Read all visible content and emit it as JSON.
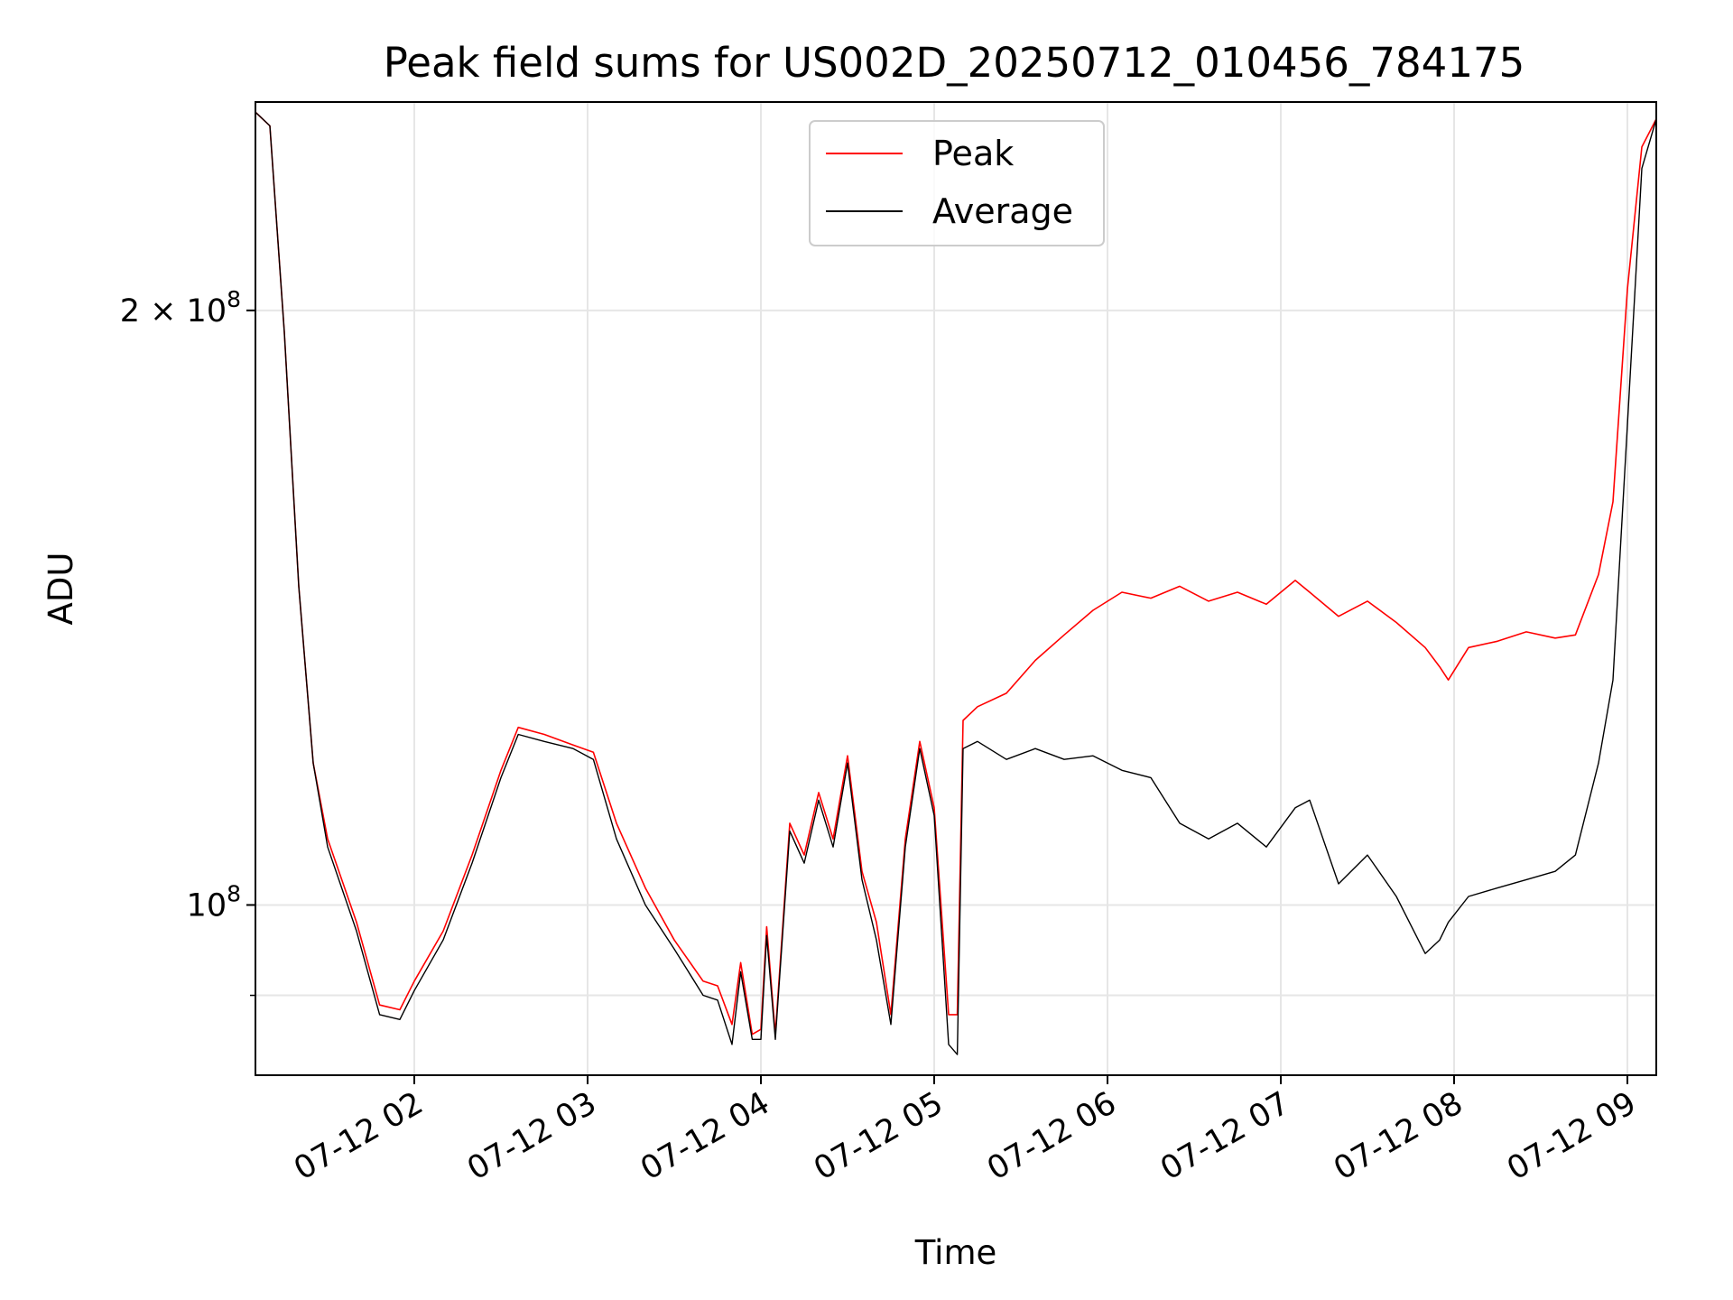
{
  "chart_data": {
    "type": "line",
    "title": "Peak field sums for US002D_20250712_010456_784175",
    "xlabel": "Time",
    "ylabel": "ADU",
    "x_axis_type": "datetime",
    "xlim": [
      "2025-07-12 01:05",
      "2025-07-12 09:10"
    ],
    "ylim": [
      82000000,
      255000000
    ],
    "y_scale": "log",
    "grid": true,
    "legend_position": "top-center",
    "x_ticks": [
      {
        "value": "2025-07-12 02:00",
        "label": "07-12 02"
      },
      {
        "value": "2025-07-12 03:00",
        "label": "07-12 03"
      },
      {
        "value": "2025-07-12 04:00",
        "label": "07-12 04"
      },
      {
        "value": "2025-07-12 05:00",
        "label": "07-12 05"
      },
      {
        "value": "2025-07-12 06:00",
        "label": "07-12 06"
      },
      {
        "value": "2025-07-12 07:00",
        "label": "07-12 07"
      },
      {
        "value": "2025-07-12 08:00",
        "label": "07-12 08"
      },
      {
        "value": "2025-07-12 09:00",
        "label": "07-12 09"
      }
    ],
    "y_ticks": [
      {
        "value": 100000000,
        "base": "10",
        "exp": "8",
        "label": "10^8"
      },
      {
        "value": 200000000,
        "mantissa": "2 × ",
        "base": "10",
        "exp": "8",
        "label": "2 × 10^8"
      }
    ],
    "y_minor_ticks": [
      90000000
    ],
    "series": [
      {
        "name": "Peak",
        "color": "#ff0000",
        "points": [
          [
            "2025-07-12 01:05",
            252000000
          ],
          [
            "2025-07-12 01:10",
            248000000
          ],
          [
            "2025-07-12 01:15",
            195000000
          ],
          [
            "2025-07-12 01:20",
            145000000
          ],
          [
            "2025-07-12 01:25",
            118000000
          ],
          [
            "2025-07-12 01:30",
            108000000
          ],
          [
            "2025-07-12 01:40",
            98000000
          ],
          [
            "2025-07-12 01:48",
            89000000
          ],
          [
            "2025-07-12 01:55",
            88500000
          ],
          [
            "2025-07-12 02:00",
            91500000
          ],
          [
            "2025-07-12 02:10",
            97000000
          ],
          [
            "2025-07-12 02:20",
            106000000
          ],
          [
            "2025-07-12 02:30",
            117000000
          ],
          [
            "2025-07-12 02:36",
            123000000
          ],
          [
            "2025-07-12 02:45",
            122000000
          ],
          [
            "2025-07-12 02:55",
            120500000
          ],
          [
            "2025-07-12 03:02",
            119500000
          ],
          [
            "2025-07-12 03:10",
            110000000
          ],
          [
            "2025-07-12 03:20",
            102000000
          ],
          [
            "2025-07-12 03:30",
            96000000
          ],
          [
            "2025-07-12 03:40",
            91500000
          ],
          [
            "2025-07-12 03:45",
            91000000
          ],
          [
            "2025-07-12 03:50",
            87000000
          ],
          [
            "2025-07-12 03:53",
            93500000
          ],
          [
            "2025-07-12 03:57",
            86000000
          ],
          [
            "2025-07-12 04:00",
            86500000
          ],
          [
            "2025-07-12 04:02",
            97500000
          ],
          [
            "2025-07-12 04:05",
            86000000
          ],
          [
            "2025-07-12 04:10",
            110000000
          ],
          [
            "2025-07-12 04:15",
            106000000
          ],
          [
            "2025-07-12 04:20",
            114000000
          ],
          [
            "2025-07-12 04:25",
            108000000
          ],
          [
            "2025-07-12 04:30",
            119000000
          ],
          [
            "2025-07-12 04:35",
            104000000
          ],
          [
            "2025-07-12 04:40",
            98000000
          ],
          [
            "2025-07-12 04:45",
            88000000
          ],
          [
            "2025-07-12 04:50",
            108000000
          ],
          [
            "2025-07-12 04:55",
            121000000
          ],
          [
            "2025-07-12 05:00",
            112000000
          ],
          [
            "2025-07-12 05:05",
            88000000
          ],
          [
            "2025-07-12 05:08",
            88000000
          ],
          [
            "2025-07-12 05:10",
            124000000
          ],
          [
            "2025-07-12 05:15",
            126000000
          ],
          [
            "2025-07-12 05:25",
            128000000
          ],
          [
            "2025-07-12 05:35",
            133000000
          ],
          [
            "2025-07-12 05:45",
            137000000
          ],
          [
            "2025-07-12 05:55",
            141000000
          ],
          [
            "2025-07-12 06:05",
            144000000
          ],
          [
            "2025-07-12 06:15",
            143000000
          ],
          [
            "2025-07-12 06:25",
            145000000
          ],
          [
            "2025-07-12 06:35",
            142500000
          ],
          [
            "2025-07-12 06:45",
            144000000
          ],
          [
            "2025-07-12 06:55",
            142000000
          ],
          [
            "2025-07-12 07:05",
            146000000
          ],
          [
            "2025-07-12 07:10",
            144000000
          ],
          [
            "2025-07-12 07:20",
            140000000
          ],
          [
            "2025-07-12 07:30",
            142500000
          ],
          [
            "2025-07-12 07:40",
            139000000
          ],
          [
            "2025-07-12 07:50",
            135000000
          ],
          [
            "2025-07-12 07:55",
            132000000
          ],
          [
            "2025-07-12 07:58",
            130000000
          ],
          [
            "2025-07-12 08:05",
            135000000
          ],
          [
            "2025-07-12 08:15",
            136000000
          ],
          [
            "2025-07-12 08:25",
            137500000
          ],
          [
            "2025-07-12 08:35",
            136500000
          ],
          [
            "2025-07-12 08:42",
            137000000
          ],
          [
            "2025-07-12 08:50",
            147000000
          ],
          [
            "2025-07-12 08:55",
            160000000
          ],
          [
            "2025-07-12 09:00",
            205000000
          ],
          [
            "2025-07-12 09:05",
            242000000
          ],
          [
            "2025-07-12 09:10",
            250000000
          ]
        ]
      },
      {
        "name": "Average",
        "color": "#000000",
        "points": [
          [
            "2025-07-12 01:05",
            252000000
          ],
          [
            "2025-07-12 01:10",
            248000000
          ],
          [
            "2025-07-12 01:15",
            195000000
          ],
          [
            "2025-07-12 01:20",
            145000000
          ],
          [
            "2025-07-12 01:25",
            118000000
          ],
          [
            "2025-07-12 01:30",
            107000000
          ],
          [
            "2025-07-12 01:40",
            97000000
          ],
          [
            "2025-07-12 01:48",
            88000000
          ],
          [
            "2025-07-12 01:55",
            87500000
          ],
          [
            "2025-07-12 02:00",
            90500000
          ],
          [
            "2025-07-12 02:10",
            96000000
          ],
          [
            "2025-07-12 02:20",
            105000000
          ],
          [
            "2025-07-12 02:30",
            116000000
          ],
          [
            "2025-07-12 02:36",
            122000000
          ],
          [
            "2025-07-12 02:45",
            121000000
          ],
          [
            "2025-07-12 02:55",
            120000000
          ],
          [
            "2025-07-12 03:02",
            118500000
          ],
          [
            "2025-07-12 03:10",
            108000000
          ],
          [
            "2025-07-12 03:20",
            100000000
          ],
          [
            "2025-07-12 03:30",
            95000000
          ],
          [
            "2025-07-12 03:40",
            90000000
          ],
          [
            "2025-07-12 03:45",
            89500000
          ],
          [
            "2025-07-12 03:50",
            85000000
          ],
          [
            "2025-07-12 03:53",
            92500000
          ],
          [
            "2025-07-12 03:57",
            85500000
          ],
          [
            "2025-07-12 04:00",
            85500000
          ],
          [
            "2025-07-12 04:02",
            96500000
          ],
          [
            "2025-07-12 04:05",
            85500000
          ],
          [
            "2025-07-12 04:10",
            109000000
          ],
          [
            "2025-07-12 04:15",
            105000000
          ],
          [
            "2025-07-12 04:20",
            113000000
          ],
          [
            "2025-07-12 04:25",
            107000000
          ],
          [
            "2025-07-12 04:30",
            118000000
          ],
          [
            "2025-07-12 04:35",
            103000000
          ],
          [
            "2025-07-12 04:40",
            96000000
          ],
          [
            "2025-07-12 04:45",
            87000000
          ],
          [
            "2025-07-12 04:50",
            107000000
          ],
          [
            "2025-07-12 04:55",
            120000000
          ],
          [
            "2025-07-12 05:00",
            111000000
          ],
          [
            "2025-07-12 05:05",
            85000000
          ],
          [
            "2025-07-12 05:08",
            84000000
          ],
          [
            "2025-07-12 05:10",
            120000000
          ],
          [
            "2025-07-12 05:15",
            121000000
          ],
          [
            "2025-07-12 05:25",
            118500000
          ],
          [
            "2025-07-12 05:35",
            120000000
          ],
          [
            "2025-07-12 05:45",
            118500000
          ],
          [
            "2025-07-12 05:55",
            119000000
          ],
          [
            "2025-07-12 06:05",
            117000000
          ],
          [
            "2025-07-12 06:15",
            116000000
          ],
          [
            "2025-07-12 06:25",
            110000000
          ],
          [
            "2025-07-12 06:35",
            108000000
          ],
          [
            "2025-07-12 06:45",
            110000000
          ],
          [
            "2025-07-12 06:55",
            107000000
          ],
          [
            "2025-07-12 07:05",
            112000000
          ],
          [
            "2025-07-12 07:10",
            113000000
          ],
          [
            "2025-07-12 07:20",
            102500000
          ],
          [
            "2025-07-12 07:30",
            106000000
          ],
          [
            "2025-07-12 07:40",
            101000000
          ],
          [
            "2025-07-12 07:50",
            94500000
          ],
          [
            "2025-07-12 07:55",
            96000000
          ],
          [
            "2025-07-12 07:58",
            98000000
          ],
          [
            "2025-07-12 08:05",
            101000000
          ],
          [
            "2025-07-12 08:15",
            102000000
          ],
          [
            "2025-07-12 08:25",
            103000000
          ],
          [
            "2025-07-12 08:35",
            104000000
          ],
          [
            "2025-07-12 08:42",
            106000000
          ],
          [
            "2025-07-12 08:50",
            118000000
          ],
          [
            "2025-07-12 08:55",
            130000000
          ],
          [
            "2025-07-12 09:00",
            175000000
          ],
          [
            "2025-07-12 09:05",
            236000000
          ],
          [
            "2025-07-12 09:10",
            250000000
          ]
        ]
      }
    ]
  }
}
